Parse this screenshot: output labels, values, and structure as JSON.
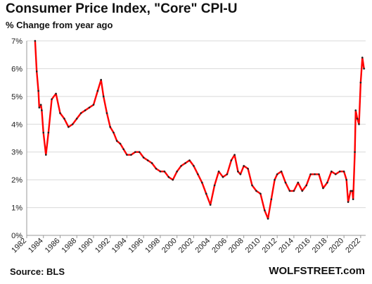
{
  "header": {
    "title": "Consumer  Price Index, \"Core\" CPI-U",
    "subtitle": "% Change from year ago"
  },
  "footer": {
    "source": "Source: BLS",
    "brand": "WOLFSTREET.com"
  },
  "colors": {
    "line": "#ff0000",
    "marker": "#222222",
    "grid": "#d9d9d9",
    "axis": "#999999"
  },
  "chart_data": {
    "type": "line",
    "title": "Consumer  Price Index, \"Core\" CPI-U",
    "subtitle": "% Change from year ago",
    "xlabel": "",
    "ylabel": "",
    "xlim": [
      1982,
      2022.6
    ],
    "ylim": [
      0,
      7
    ],
    "grid": true,
    "y_ticks": [
      0,
      1,
      2,
      3,
      4,
      5,
      6,
      7
    ],
    "y_tick_labels": [
      "0%",
      "1%",
      "2%",
      "3%",
      "4%",
      "5%",
      "6%",
      "7%"
    ],
    "x_ticks": [
      1982,
      1984,
      1986,
      1988,
      1990,
      1992,
      1994,
      1996,
      1998,
      2000,
      2002,
      2004,
      2006,
      2008,
      2010,
      2012,
      2014,
      2016,
      2018,
      2020,
      2022
    ],
    "x_tick_labels": [
      "1982",
      "1984",
      "1986",
      "1988",
      "1990",
      "1992",
      "1994",
      "1996",
      "1998",
      "2000",
      "2002",
      "2004",
      "2006",
      "2008",
      "2010",
      "2012",
      "2014",
      "2016",
      "2018",
      "2020",
      "2022"
    ],
    "series": [
      {
        "x": [
          1983.0,
          1983.2,
          1983.4,
          1983.5,
          1983.7,
          1983.8,
          1984.0,
          1984.3,
          1984.6,
          1985.0,
          1985.5,
          1986.0,
          1986.5,
          1987.0,
          1987.5,
          1988.0,
          1988.5,
          1989.0,
          1989.5,
          1990.0,
          1990.5,
          1990.9,
          1991.2,
          1991.6,
          1992.0,
          1992.4,
          1992.8,
          1993.2,
          1993.6,
          1994.0,
          1994.5,
          1995.0,
          1995.5,
          1996.0,
          1996.5,
          1997.0,
          1997.5,
          1998.0,
          1998.5,
          1999.0,
          1999.5,
          2000.0,
          2000.5,
          2001.0,
          2001.5,
          2002.0,
          2002.5,
          2003.0,
          2003.5,
          2004.0,
          2004.5,
          2005.0,
          2005.5,
          2006.0,
          2006.5,
          2006.9,
          2007.3,
          2007.6,
          2008.0,
          2008.5,
          2009.0,
          2009.5,
          2010.0,
          2010.5,
          2010.9,
          2011.3,
          2011.7,
          2012.0,
          2012.5,
          2013.0,
          2013.5,
          2014.0,
          2014.5,
          2015.0,
          2015.5,
          2016.0,
          2016.5,
          2017.0,
          2017.5,
          2018.0,
          2018.5,
          2019.0,
          2019.5,
          2020.0,
          2020.3,
          2020.5,
          2020.8,
          2021.0,
          2021.1,
          2021.3,
          2021.4,
          2021.6,
          2021.8,
          2022.0,
          2022.2,
          2022.4
        ],
        "y": [
          7.0,
          5.9,
          5.2,
          4.6,
          4.7,
          4.5,
          3.7,
          2.9,
          3.7,
          4.9,
          5.1,
          4.4,
          4.2,
          3.9,
          4.0,
          4.2,
          4.4,
          4.5,
          4.6,
          4.7,
          5.2,
          5.6,
          5.0,
          4.4,
          3.9,
          3.7,
          3.4,
          3.3,
          3.1,
          2.9,
          2.9,
          3.0,
          3.0,
          2.8,
          2.7,
          2.6,
          2.4,
          2.3,
          2.3,
          2.1,
          2.0,
          2.3,
          2.5,
          2.6,
          2.7,
          2.5,
          2.2,
          1.9,
          1.5,
          1.1,
          1.8,
          2.3,
          2.1,
          2.2,
          2.7,
          2.9,
          2.3,
          2.2,
          2.5,
          2.4,
          1.8,
          1.6,
          1.5,
          0.9,
          0.6,
          1.3,
          2.0,
          2.2,
          2.3,
          1.9,
          1.6,
          1.6,
          1.9,
          1.6,
          1.8,
          2.2,
          2.2,
          2.2,
          1.7,
          1.9,
          2.3,
          2.2,
          2.3,
          2.3,
          2.0,
          1.2,
          1.6,
          1.6,
          1.3,
          3.0,
          4.5,
          4.2,
          4.0,
          5.5,
          6.4,
          6.0
        ]
      }
    ]
  }
}
